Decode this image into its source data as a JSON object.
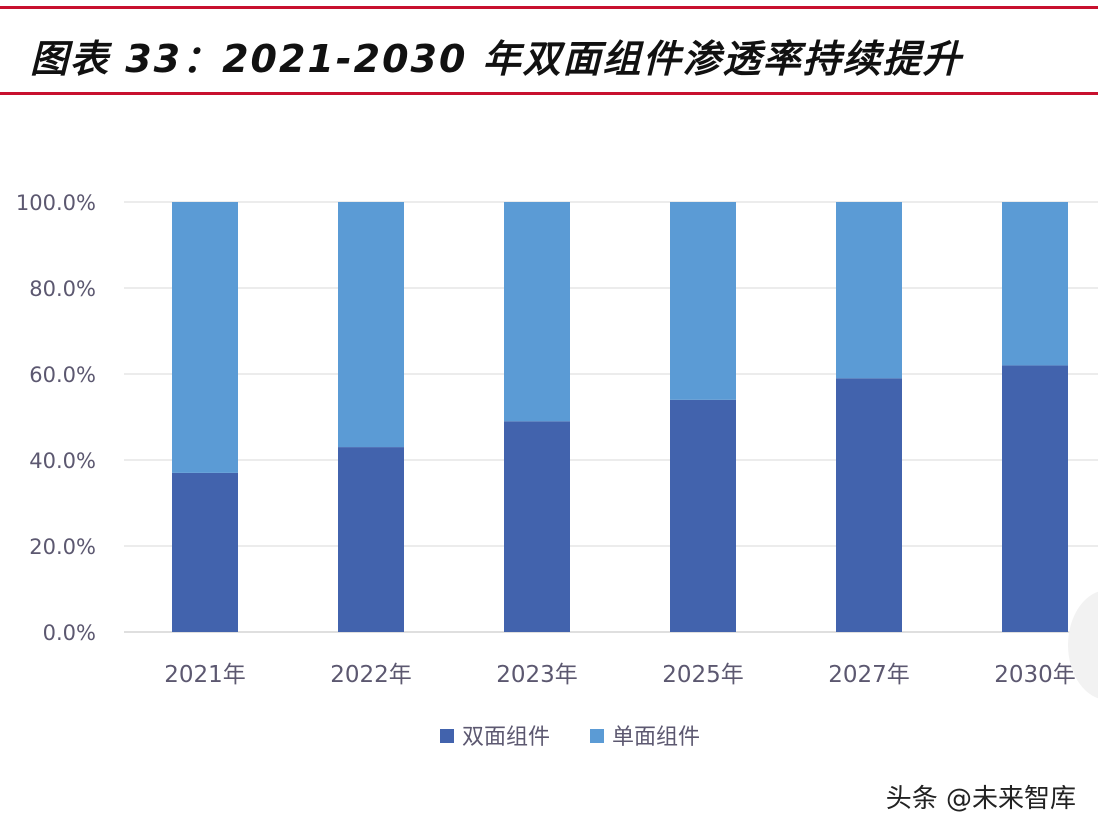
{
  "header": {
    "title": "图表 33：2021-2030 年双面组件渗透率持续提升"
  },
  "watermark": "头条 @未来智库",
  "colors": {
    "rule": "#c8102e",
    "bifacial": "#4263ad",
    "monofacial": "#5b9bd5",
    "grid": "#d9d9d9",
    "axis_text": "#5c5870"
  },
  "chart_data": {
    "type": "bar",
    "stacked": true,
    "title": "图表 33：2021-2030 年双面组件渗透率持续提升",
    "xlabel": "",
    "ylabel": "",
    "categories": [
      "2021年",
      "2022年",
      "2023年",
      "2025年",
      "2027年",
      "2030年"
    ],
    "series": [
      {
        "name": "双面组件",
        "color": "#4263ad",
        "values": [
          37,
          43,
          49,
          54,
          59,
          62
        ]
      },
      {
        "name": "单面组件",
        "color": "#5b9bd5",
        "values": [
          63,
          57,
          51,
          46,
          41,
          38
        ]
      }
    ],
    "ylim": [
      0,
      100
    ],
    "yticks": [
      "0.0%",
      "20.0%",
      "40.0%",
      "60.0%",
      "80.0%",
      "100.0%"
    ],
    "grid": true,
    "legend_position": "bottom"
  }
}
